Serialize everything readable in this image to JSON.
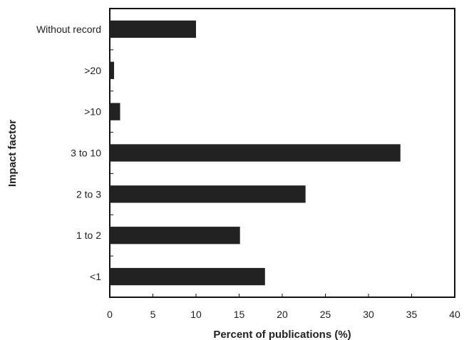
{
  "chart_data": {
    "type": "bar",
    "orientation": "horizontal",
    "xlabel": "Percent of publications (%)",
    "ylabel": "Impact factor",
    "xlim": [
      0,
      40
    ],
    "x_ticks": [
      0,
      5,
      10,
      15,
      20,
      25,
      30,
      35,
      40
    ],
    "grid": false,
    "categories": [
      "Without record",
      ">20",
      ">10",
      "3 to 10",
      "2 to 3",
      "1 to 2",
      "<1"
    ],
    "values": [
      10,
      0.5,
      1.2,
      33.7,
      22.7,
      15.1,
      18.0
    ],
    "bar_color": "#222222"
  }
}
